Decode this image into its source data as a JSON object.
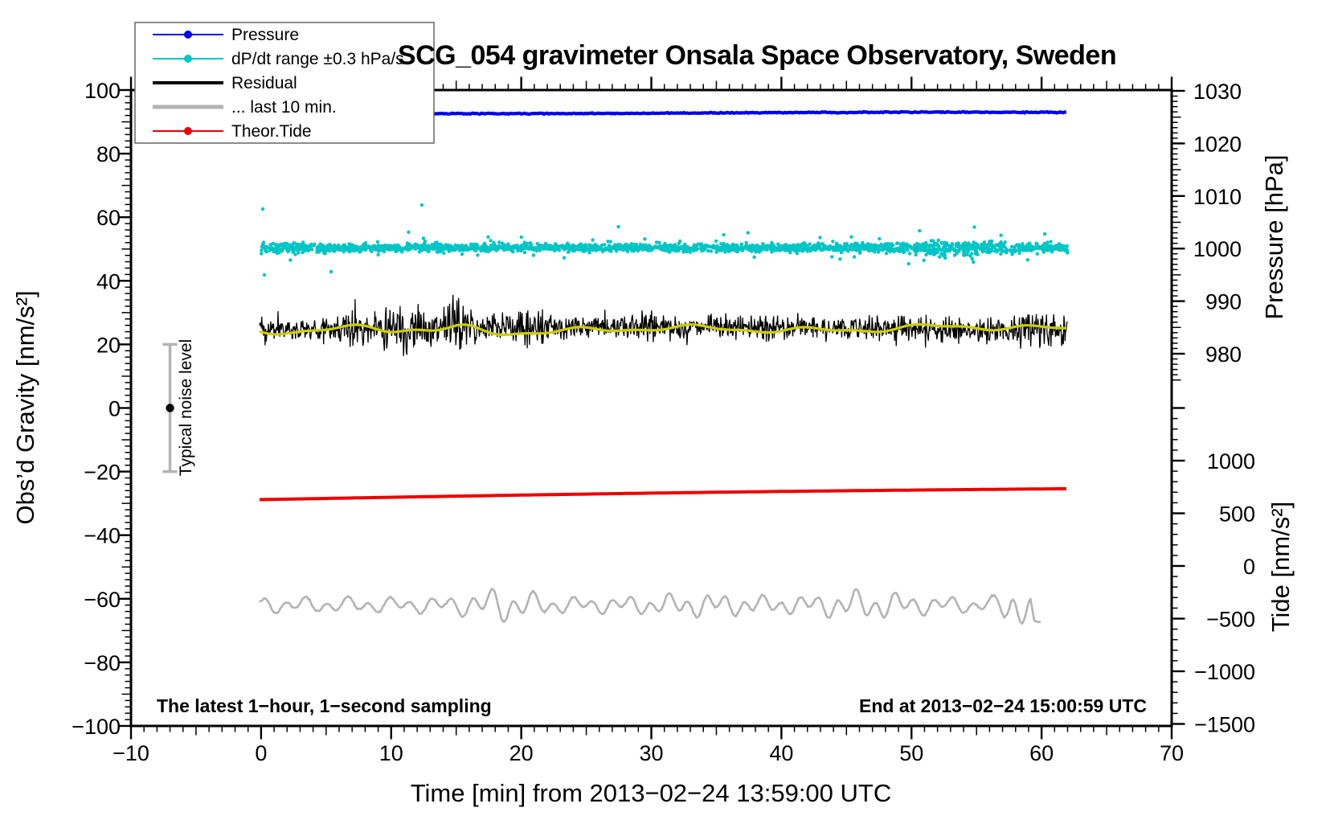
{
  "title": "SCG_054 gravimeter Onsala Space Observatory, Sweden",
  "annotations": {
    "sampling_note": "The latest 1−hour, 1−second sampling",
    "end_time_note": "End at 2013−02−24 15:00:59 UTC",
    "noise_marker_label": "Typical noise level"
  },
  "axes": {
    "x": {
      "label": "Time [min] from 2013−02−24 13:59:00 UTC",
      "range": [
        -10,
        70
      ],
      "tick_values": [
        -10,
        0,
        10,
        20,
        30,
        40,
        50,
        60,
        70
      ],
      "tick_labels": [
        "−10",
        "0",
        "10",
        "20",
        "30",
        "40",
        "50",
        "60",
        "70"
      ],
      "minor_step": 1,
      "medium_step": 5
    },
    "y_left": {
      "label": "Obs’d Gravity [nm/s²]",
      "range": [
        -100,
        100
      ],
      "tick_values": [
        100,
        80,
        60,
        40,
        20,
        0,
        -20,
        -40,
        -60,
        -80,
        -100
      ],
      "tick_labels": [
        "100",
        "80",
        "60",
        "40",
        "20",
        "0",
        "−20",
        "−40",
        "−60",
        "−80",
        "−100"
      ],
      "minor_step": 2,
      "medium_step": 10
    },
    "y_right_pressure": {
      "label": "Pressure [hPa]",
      "tick_values": [
        1030,
        1020,
        1010,
        1000,
        990,
        980
      ],
      "tick_labels": [
        "1030",
        "1020",
        "1010",
        "1000",
        "990",
        "980"
      ],
      "minor_step": 1,
      "medium_step": 5
    },
    "y_right_tide": {
      "label": "Tide [nm/s²]",
      "tick_values": [
        1000,
        500,
        0,
        -500,
        -1000,
        -1500
      ],
      "tick_labels": [
        "1000",
        "500",
        "0",
        "−500",
        "−1000",
        "−1500"
      ],
      "minor_step": 100,
      "major_step": 500
    }
  },
  "legend": {
    "items": [
      {
        "id": "pressure",
        "label": "Pressure",
        "color": "#0000ee",
        "line_width": 2,
        "dot": true
      },
      {
        "id": "dpdt",
        "label": "dP/dt range ±0.3 hPa/s",
        "color": "#00c5c5",
        "line_width": 2,
        "dot": true
      },
      {
        "id": "residual",
        "label": "Residual",
        "color": "#000000",
        "line_width": 4,
        "dot": false
      },
      {
        "id": "last10",
        "label": "... last 10 min.",
        "color": "#b3b3b3",
        "line_width": 5,
        "dot": false
      },
      {
        "id": "tide",
        "label": "Theor.Tide",
        "color": "#ee0000",
        "line_width": 2,
        "dot": true
      }
    ]
  },
  "chart_data": {
    "type": "mixed",
    "title": "SCG_054 gravimeter Onsala Space Observatory, Sweden",
    "x_axis": {
      "label": "Time [min] from 2013−02−24 13:59:00 UTC",
      "range": [
        -10,
        70
      ],
      "data_span_min": [
        0,
        62
      ]
    },
    "start_utc": "2013-02-24 13:59:00",
    "end_utc": "2013-02-24 15:00:59",
    "series": [
      {
        "id": "pressure",
        "name": "Pressure",
        "type": "line",
        "axis": "right-pressure",
        "color": "#0000ee",
        "x_min": [
          0,
          62
        ],
        "approx_constant_hPa": 1025.8,
        "small_fluctuation_hPa": 0.3
      },
      {
        "id": "dpdt",
        "name": "dP/dt range ±0.3 hPa/s",
        "type": "scatter",
        "axis": "left-gravity-offset",
        "color": "#00c5c5",
        "x_min": [
          0,
          62
        ],
        "center_nm_s2": 50,
        "typical_scatter_nm_s2": 2,
        "outlier_extent_nm_s2": 13,
        "wider_noise_interval_min": [
          50,
          58
        ]
      },
      {
        "id": "residual",
        "name": "Residual",
        "type": "line",
        "axis": "left-gravity",
        "color": "#000000",
        "x_min": [
          0,
          62
        ],
        "mean_nm_s2": 25,
        "typical_peak_to_peak_nm_s2": 30,
        "burst_interval_min": [
          8,
          21
        ],
        "extreme_excursions_nm_s2": [
          5,
          44
        ]
      },
      {
        "id": "residual_smooth",
        "name": "Residual smoothed",
        "type": "line",
        "axis": "left-gravity",
        "color": "#cdcd00",
        "x_min": [
          0,
          62
        ],
        "mean_nm_s2": 24.8,
        "oscillation_amplitude_nm_s2": 2
      },
      {
        "id": "tide",
        "name": "Theor.Tide",
        "type": "line",
        "axis": "right-tide",
        "color": "#ee0000",
        "x_min": [
          0,
          62
        ],
        "start_nm_s2": 630,
        "end_nm_s2": 736
      },
      {
        "id": "last10",
        "name": "... last 10 min.",
        "type": "line",
        "axis": "left-gravity",
        "color": "#b3b3b3",
        "x_min": [
          0,
          60
        ],
        "mean_nm_s2": -62,
        "typical_amplitude_nm_s2": 4,
        "large_excursion_nm_s2": 12
      }
    ],
    "noise_marker": {
      "x_min": -7,
      "center_nm_s2": 0,
      "error_bar_nm_s2": 20
    },
    "right_axis_pressure_anchor": {
      "hPa": 1030,
      "ticks_every_hPa": 10
    },
    "right_axis_tide_anchor": {
      "nm_s2": 1000,
      "ticks_every_nm_s2": 500
    },
    "grid": false,
    "legend_position": "top-left"
  },
  "colors": {
    "frame": "#000000",
    "pressure": "#0000ee",
    "dpdt": "#00c5c5",
    "residual": "#000000",
    "residual_smooth": "#cdcd00",
    "tide": "#ee0000",
    "last10": "#b3b3b3",
    "legend_border": "#666666",
    "background": "#ffffff"
  }
}
